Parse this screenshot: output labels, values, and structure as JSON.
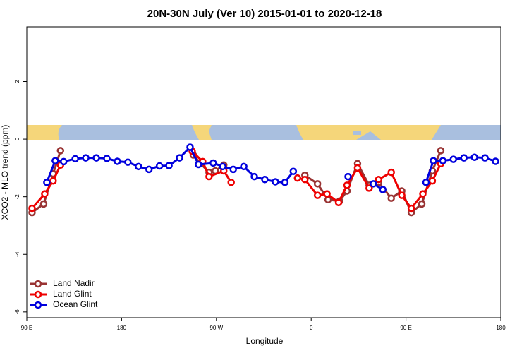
{
  "chart_data": {
    "type": "line",
    "title": "20N-30N July (Ver 10)   2015-01-01 to 2020-12-18",
    "xlabel": "Longitude",
    "ylabel": "XCO2 - MLO trend (ppm)",
    "xlim": [
      90,
      540
    ],
    "ylim": [
      -6.2,
      3.9
    ],
    "xticks": [
      {
        "value": 90,
        "label": "90 E"
      },
      180,
      {
        "value": 270,
        "label": "90 W"
      },
      {
        "value": 360,
        "label": "0"
      },
      {
        "value": 450,
        "label": "90 E"
      },
      {
        "value": 540,
        "label": "180"
      }
    ],
    "yticks": [
      -6,
      -4,
      -2,
      0,
      2
    ],
    "legend": "bottom-left",
    "series": [
      {
        "name": "Land Nadir",
        "color": "#993333",
        "x": [
          95,
          106,
          115,
          122,
          185,
          248,
          255,
          263,
          269,
          277,
          315,
          354,
          366,
          376,
          387,
          394,
          404,
          415,
          424,
          436,
          446,
          455,
          465,
          475,
          483
        ],
        "values": [
          -2.55,
          -2.25,
          -1.2,
          -0.4,
          null,
          -0.55,
          -0.85,
          -1.15,
          -1.1,
          -0.9,
          null,
          -1.25,
          -1.55,
          -2.1,
          -2.15,
          -1.8,
          -0.85,
          -1.6,
          -1.5,
          -2.05,
          -1.8,
          -2.55,
          -2.25,
          -1.1,
          -0.4
        ]
      },
      {
        "name": "Land Glint",
        "color": "#ee0000",
        "x": [
          95,
          107,
          115,
          122,
          185,
          247,
          257,
          263,
          277,
          284,
          315,
          347,
          354,
          366,
          375,
          386,
          394,
          404,
          415,
          424,
          436,
          446,
          455,
          466,
          475,
          483
        ],
        "values": [
          -2.4,
          -1.9,
          -1.45,
          -0.9,
          null,
          -0.42,
          -0.78,
          -1.3,
          -1.1,
          -1.5,
          null,
          -1.35,
          -1.4,
          -1.95,
          -1.9,
          -2.2,
          -1.6,
          -1.0,
          -1.7,
          -1.4,
          -1.15,
          -1.95,
          -2.4,
          -1.9,
          -1.45,
          -0.85
        ]
      },
      {
        "name": "Ocean Glint",
        "color": "#0000dd",
        "x": [
          109,
          117,
          125,
          136,
          146,
          156,
          166,
          176,
          186,
          196,
          206,
          216,
          225,
          235,
          245,
          253,
          267,
          276,
          286,
          296,
          306,
          316,
          326,
          335,
          343,
          369,
          395,
          407,
          419,
          428,
          449,
          469,
          476,
          485,
          495,
          505,
          515,
          525,
          535
        ],
        "values": [
          -1.5,
          -0.75,
          -0.78,
          -0.68,
          -0.65,
          -0.65,
          -0.67,
          -0.77,
          -0.8,
          -0.95,
          -1.05,
          -0.93,
          -0.92,
          -0.65,
          -0.28,
          -0.88,
          -0.83,
          -0.95,
          -1.05,
          -0.95,
          -1.3,
          -1.4,
          -1.48,
          -1.5,
          -1.12,
          null,
          -1.3,
          null,
          -1.55,
          -1.75,
          null,
          -1.5,
          -0.75,
          -0.75,
          -0.7,
          -0.65,
          -0.63,
          -0.65,
          -0.77
        ]
      }
    ]
  }
}
